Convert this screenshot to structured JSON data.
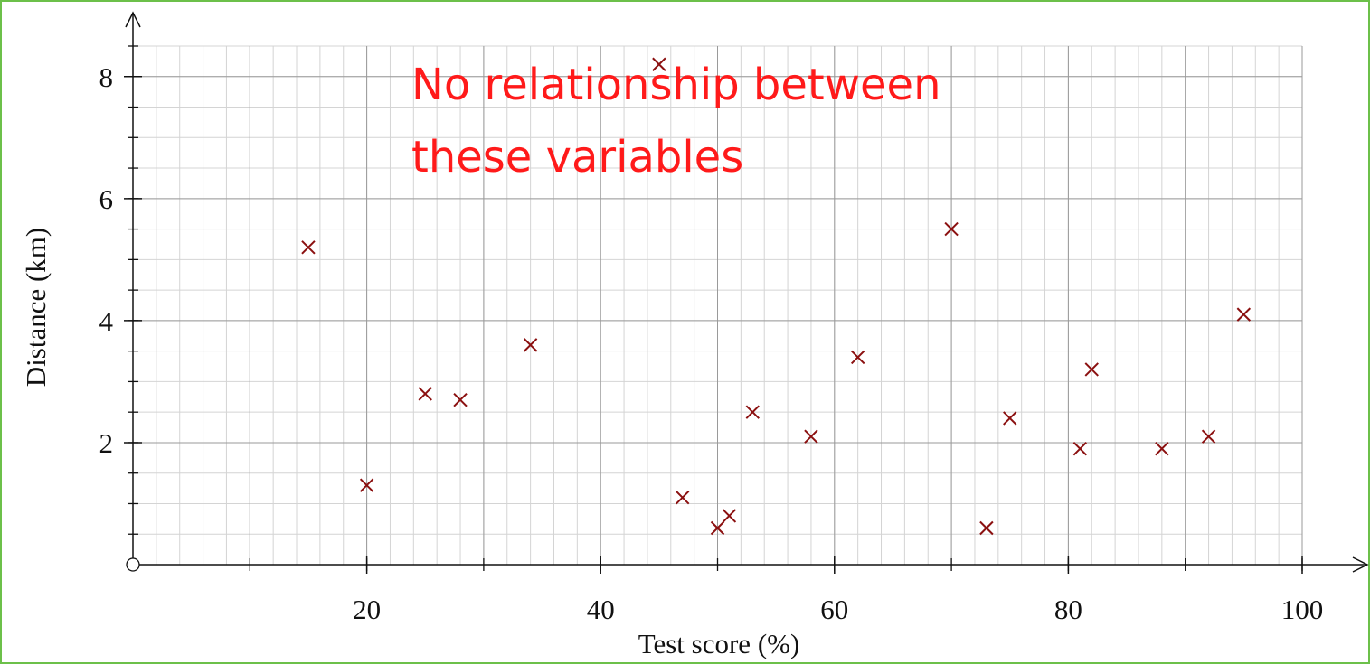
{
  "chart_data": {
    "type": "scatter",
    "xlabel": "Test score (%)",
    "ylabel": "Distance (km)",
    "annotation": [
      "No relationship between",
      "these variables"
    ],
    "series": [
      {
        "color": "#8b1010",
        "x": [
          15,
          20,
          25,
          28,
          34,
          45,
          47,
          50,
          51,
          53,
          58,
          62,
          70,
          73,
          75,
          81,
          82,
          88,
          92,
          95
        ],
        "values": [
          5.2,
          1.3,
          2.8,
          2.7,
          3.6,
          8.2,
          1.1,
          0.6,
          0.8,
          2.5,
          2.1,
          3.4,
          5.5,
          0.6,
          2.4,
          1.9,
          3.2,
          1.9,
          2.1,
          4.1
        ]
      }
    ],
    "xlim": [
      0,
      100
    ],
    "ylim": [
      0,
      8.5
    ],
    "xticks": [
      20,
      40,
      60,
      80,
      100
    ],
    "yticks": [
      2,
      4,
      6,
      8
    ],
    "grid": true
  }
}
